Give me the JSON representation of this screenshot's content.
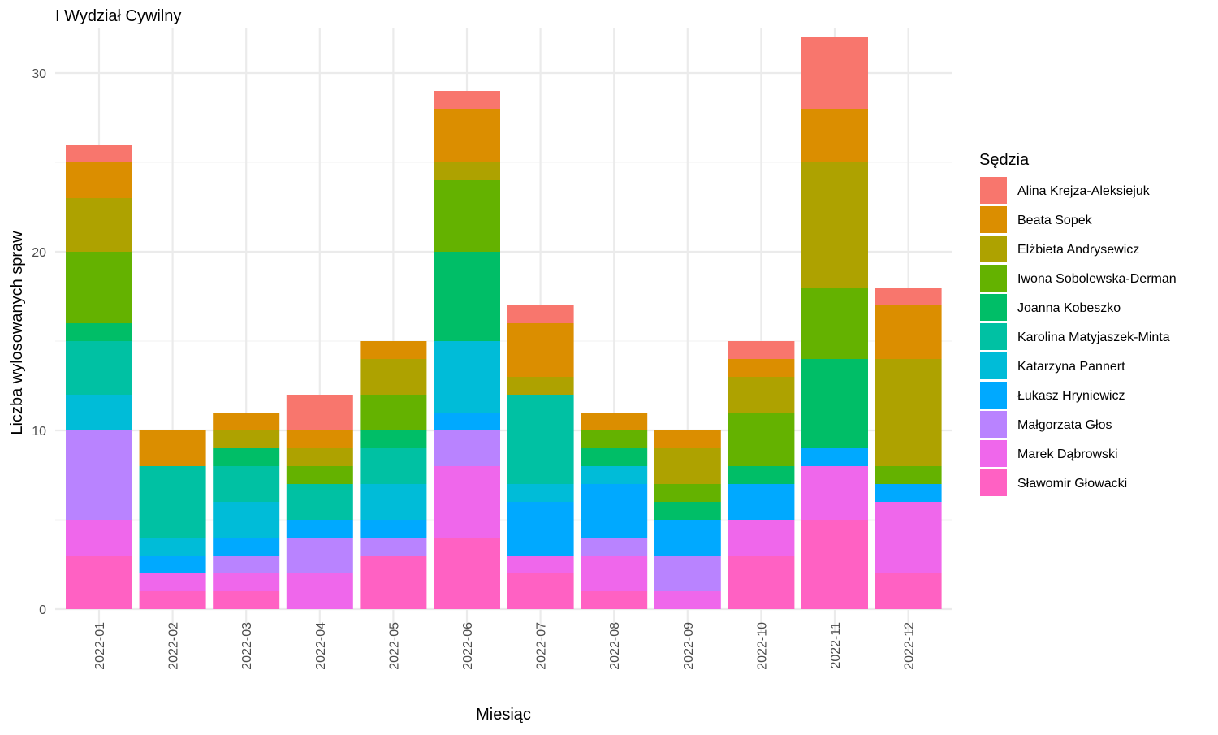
{
  "chart_data": {
    "type": "bar",
    "stacked": true,
    "title": "I Wydział Cywilny",
    "xlabel": "Miesiąc",
    "ylabel": "Liczba wylosowanych spraw",
    "ylim": [
      0,
      32.5
    ],
    "yticks": [
      0,
      10,
      20,
      30
    ],
    "grid": true,
    "legend_title": "Sędzia",
    "legend_position": "right",
    "categories": [
      "2022-01",
      "2022-02",
      "2022-03",
      "2022-04",
      "2022-05",
      "2022-06",
      "2022-07",
      "2022-08",
      "2022-09",
      "2022-10",
      "2022-11",
      "2022-12"
    ],
    "series": [
      {
        "name": "Sławomir Głowacki",
        "color": "#FF61C3",
        "values": [
          3,
          1,
          1,
          0,
          3,
          4,
          2,
          1,
          0,
          3,
          5,
          2
        ]
      },
      {
        "name": "Marek Dąbrowski",
        "color": "#EF67EB",
        "values": [
          2,
          1,
          1,
          2,
          0,
          4,
          1,
          2,
          1,
          2,
          3,
          4
        ]
      },
      {
        "name": "Małgorzata Głos",
        "color": "#B983FF",
        "values": [
          5,
          0,
          1,
          2,
          1,
          2,
          0,
          1,
          2,
          0,
          0,
          0
        ]
      },
      {
        "name": "Łukasz Hryniewicz",
        "color": "#00A9FF",
        "values": [
          0,
          1,
          1,
          1,
          1,
          1,
          3,
          3,
          2,
          2,
          1,
          1
        ]
      },
      {
        "name": "Katarzyna Pannert",
        "color": "#00BCD8",
        "values": [
          2,
          1,
          2,
          0,
          2,
          4,
          1,
          1,
          0,
          0,
          0,
          0
        ]
      },
      {
        "name": "Karolina Matyjaszek-Minta",
        "color": "#00C1A3",
        "values": [
          3,
          4,
          2,
          2,
          2,
          0,
          5,
          0,
          0,
          0,
          0,
          0
        ]
      },
      {
        "name": "Joanna Kobeszko",
        "color": "#00BE67",
        "values": [
          1,
          0,
          1,
          0,
          1,
          5,
          0,
          1,
          1,
          1,
          5,
          0
        ]
      },
      {
        "name": "Iwona Sobolewska-Derman",
        "color": "#64B200",
        "values": [
          4,
          0,
          0,
          1,
          2,
          4,
          0,
          1,
          1,
          3,
          4,
          1
        ]
      },
      {
        "name": "Elżbieta Andrysewicz",
        "color": "#AEA200",
        "values": [
          3,
          0,
          1,
          1,
          2,
          1,
          1,
          0,
          2,
          2,
          7,
          6
        ]
      },
      {
        "name": "Beata Sopek",
        "color": "#DB8E00",
        "values": [
          2,
          2,
          1,
          1,
          1,
          3,
          3,
          1,
          1,
          1,
          3,
          3
        ]
      },
      {
        "name": "Alina Krejza-Aleksiejuk",
        "color": "#F8766D",
        "values": [
          1,
          0,
          0,
          2,
          0,
          1,
          1,
          0,
          0,
          1,
          4,
          1
        ]
      }
    ]
  }
}
